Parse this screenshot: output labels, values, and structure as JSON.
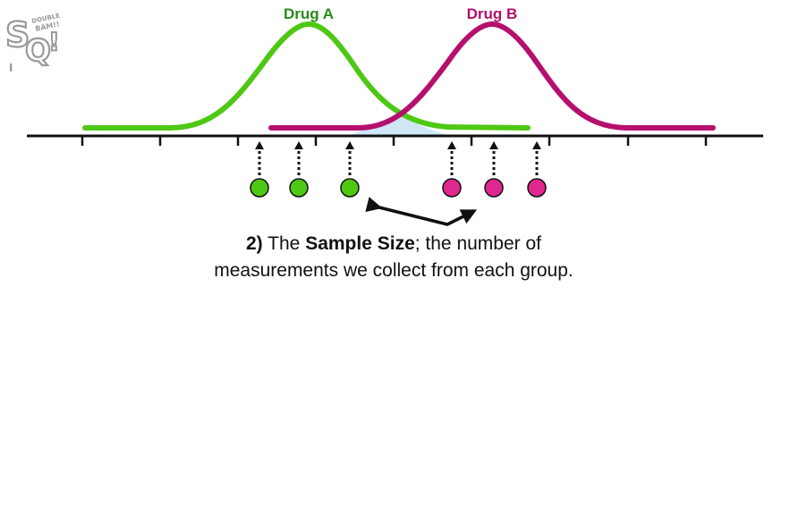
{
  "logo": {
    "text_main": "SQ!",
    "text_small": "DOUBLE BAM!!"
  },
  "curves": [
    {
      "name": "Drug A",
      "color": "#4fc814",
      "label_color": "#2a8a17"
    },
    {
      "name": "Drug B",
      "color": "#b5106e",
      "label_color": "#b5106e"
    }
  ],
  "overlap_color": "#cfe6f7",
  "axis_color": "#111111",
  "samples": {
    "drug_a": {
      "count": 3,
      "color": "#4fc814"
    },
    "drug_b": {
      "count": 3,
      "color": "#e0278f"
    }
  },
  "caption": {
    "number": "2)",
    "pre": "The",
    "emphasis": "Sample Size",
    "post": "; the number of",
    "line2": "measurements we collect from each group."
  }
}
